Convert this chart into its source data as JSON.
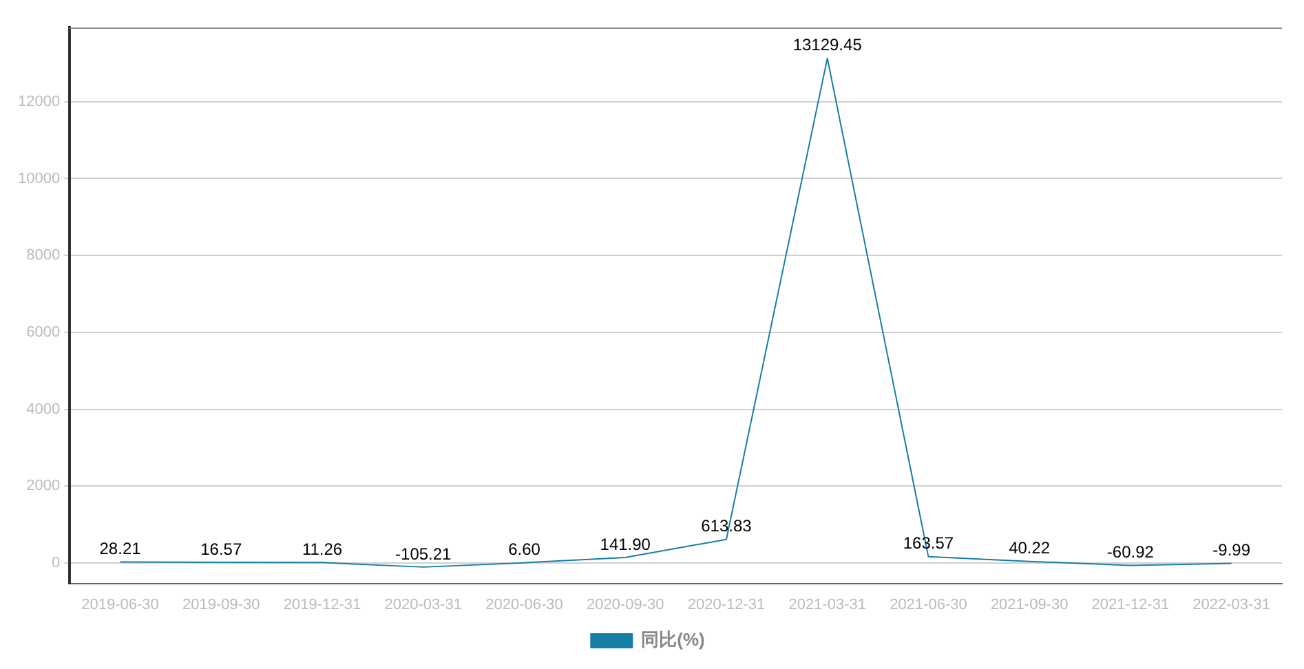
{
  "chart_data": {
    "type": "line",
    "categories": [
      "2019-06-30",
      "2019-09-30",
      "2019-12-31",
      "2020-03-31",
      "2020-06-30",
      "2020-09-30",
      "2020-12-31",
      "2021-03-31",
      "2021-06-30",
      "2021-09-30",
      "2021-12-31",
      "2022-03-31"
    ],
    "series": [
      {
        "name": "同比(%)",
        "color": "#177ea6",
        "values": [
          28.21,
          16.57,
          11.26,
          -105.21,
          6.6,
          141.9,
          613.83,
          13129.45,
          163.57,
          40.22,
          -60.92,
          -9.99
        ]
      }
    ],
    "value_labels": [
      "28.21",
      "16.57",
      "11.26",
      "-105.21",
      "6.60",
      "141.90",
      "613.83",
      "13129.45",
      "163.57",
      "40.22",
      "-60.92",
      "-9.99"
    ],
    "ylim": [
      -530,
      13930
    ],
    "yticks": [
      0,
      2000,
      4000,
      6000,
      8000,
      10000,
      12000
    ],
    "grid": "y",
    "legend": "bottom",
    "marker": "none",
    "line_style": "solid"
  }
}
